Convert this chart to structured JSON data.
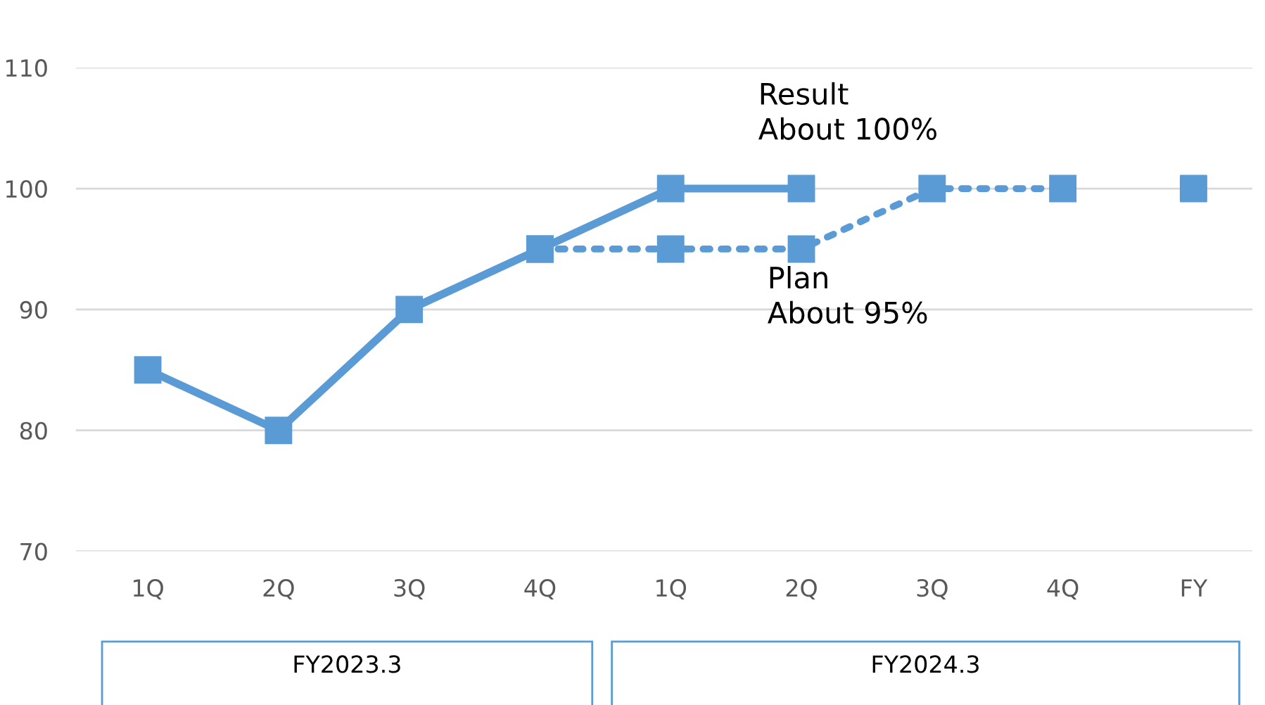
{
  "chart_data": {
    "type": "line",
    "categories": [
      "1Q",
      "2Q",
      "3Q",
      "4Q",
      "1Q",
      "2Q",
      "3Q",
      "4Q",
      "FY"
    ],
    "series": [
      {
        "color": "#5b9bd5",
        "line_style": "solid",
        "marker": "square",
        "values": [
          85,
          80,
          90,
          95,
          100,
          100,
          null,
          null,
          null
        ]
      },
      {
        "color": "#5b9bd5",
        "line_style": "dotted",
        "marker": "square",
        "values": [
          null,
          null,
          null,
          95,
          95,
          95,
          100,
          100,
          null
        ]
      },
      {
        "type": "scatter",
        "color": "#5b9bd5",
        "marker": "square",
        "values": [
          null,
          null,
          null,
          null,
          null,
          null,
          null,
          null,
          100
        ]
      }
    ],
    "ylim": [
      70,
      110
    ],
    "yticks": [
      70,
      80,
      90,
      100,
      110
    ],
    "grid": "y",
    "annotations": [
      "Result\nAbout 100%",
      "Plan\nAbout 95%",
      "FY2023.3",
      "FY2024.3"
    ]
  }
}
